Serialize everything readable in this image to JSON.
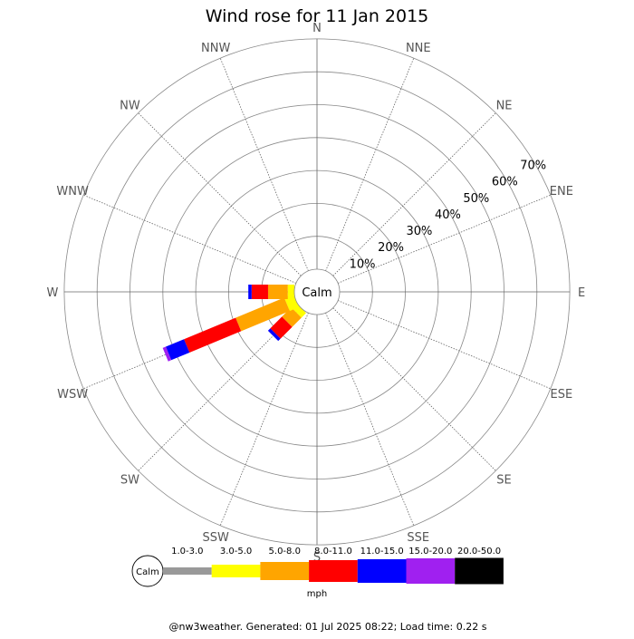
{
  "chart_data": {
    "type": "windrose",
    "title": "Wind rose for 11 Jan 2015",
    "center_label": "Calm",
    "directions": [
      "N",
      "NNE",
      "NE",
      "ENE",
      "E",
      "ESE",
      "SE",
      "SSE",
      "S",
      "SSW",
      "SW",
      "WSW",
      "W",
      "WNW",
      "NW",
      "NNW"
    ],
    "rings": [
      10,
      20,
      30,
      40,
      50,
      60,
      70
    ],
    "ring_labels": [
      "10%",
      "20%",
      "30%",
      "40%",
      "50%",
      "60%",
      "70%"
    ],
    "units": "mph",
    "speed_bins": [
      {
        "label": "1.0-3.0",
        "color": "#999999"
      },
      {
        "label": "3.0-5.0",
        "color": "#ffff00"
      },
      {
        "label": "5.0-8.0",
        "color": "#ffa500"
      },
      {
        "label": "8.0-11.0",
        "color": "#ff0000"
      },
      {
        "label": "11.0-15.0",
        "color": "#0000ff"
      },
      {
        "label": "15.0-20.0",
        "color": "#a020f0"
      },
      {
        "label": "20.0-50.0",
        "color": "#000000"
      }
    ],
    "series": [
      {
        "direction": "SW",
        "values": [
          0,
          2,
          4,
          5,
          1,
          0,
          0
        ]
      },
      {
        "direction": "WSW",
        "values": [
          0,
          3,
          16,
          17,
          6,
          1,
          0
        ]
      },
      {
        "direction": "W",
        "values": [
          0,
          2,
          6,
          5,
          1,
          0,
          0
        ]
      }
    ]
  },
  "footer": "@nw3weather. Generated: 01 Jul 2025 08:22; Load time: 0.22 s"
}
